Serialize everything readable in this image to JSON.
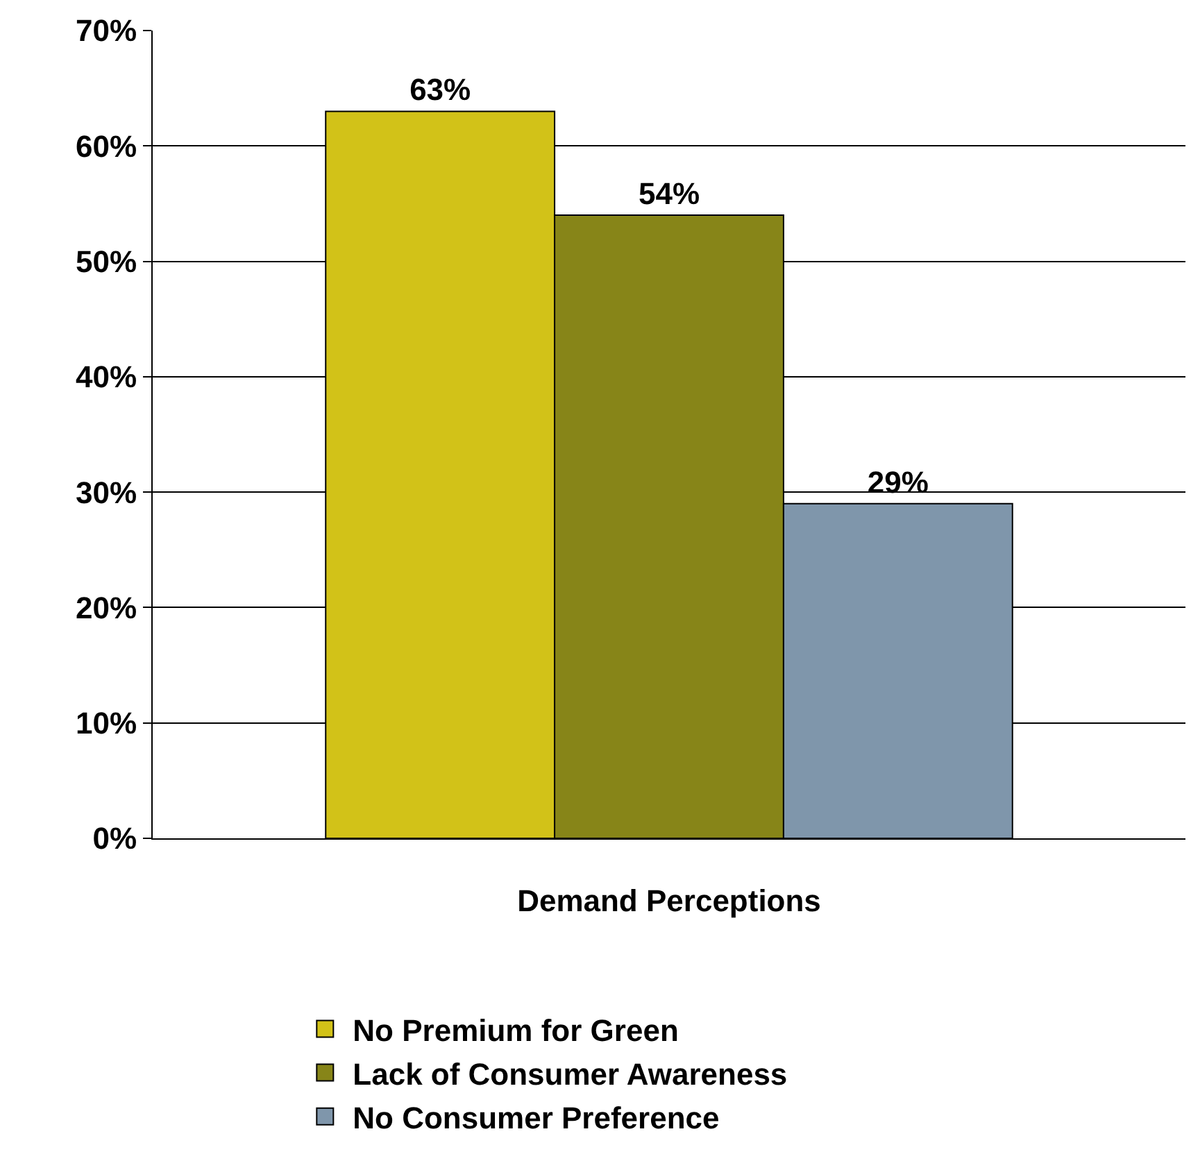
{
  "chart_data": {
    "type": "bar",
    "categories": [
      "Demand Perceptions"
    ],
    "series": [
      {
        "name": "No Premium for Green",
        "color": "#d2c218",
        "values": [
          63
        ],
        "value_labels": [
          "63%"
        ]
      },
      {
        "name": "Lack of Consumer Awareness",
        "color": "#878518",
        "values": [
          54
        ],
        "value_labels": [
          "54%"
        ]
      },
      {
        "name": "No Consumer Preference",
        "color": "#7f96ab",
        "values": [
          29
        ],
        "value_labels": [
          "29%"
        ]
      }
    ],
    "ylim": [
      0,
      70
    ],
    "yticks": [
      {
        "value": 0,
        "label": "0%"
      },
      {
        "value": 10,
        "label": "10%"
      },
      {
        "value": 20,
        "label": "20%"
      },
      {
        "value": 30,
        "label": "30%"
      },
      {
        "value": 40,
        "label": "40%"
      },
      {
        "value": 50,
        "label": "50%"
      },
      {
        "value": 60,
        "label": "60%"
      },
      {
        "value": 70,
        "label": "70%"
      }
    ],
    "grid": "y",
    "legend": "bottom"
  }
}
